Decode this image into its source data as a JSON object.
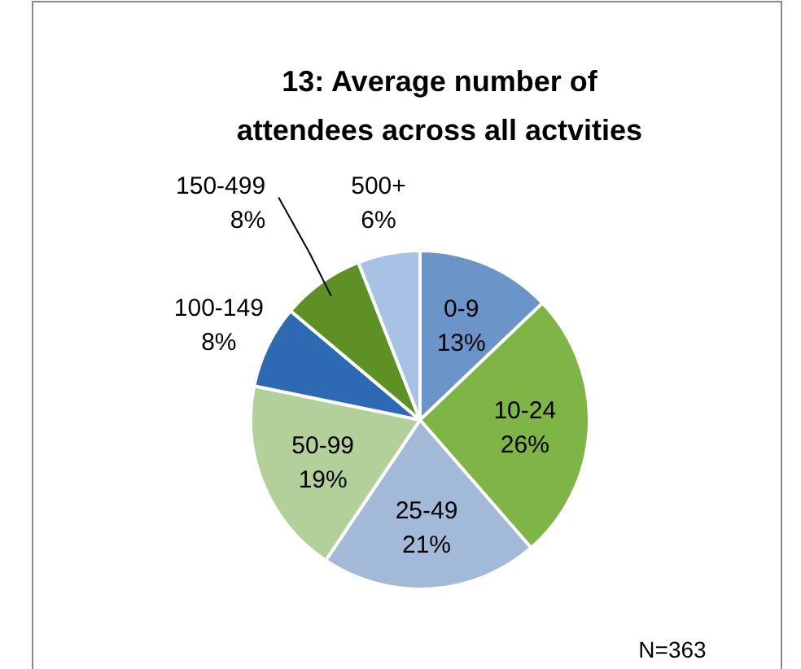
{
  "chart_data": {
    "type": "pie",
    "title": "13: Average number of attendees across all actvities",
    "categories": [
      "0-9",
      "10-24",
      "25-49",
      "50-99",
      "100-149",
      "150-499",
      "500+"
    ],
    "values": [
      13,
      26,
      21,
      19,
      8,
      8,
      6
    ],
    "colors": [
      "#6b94c9",
      "#7fb446",
      "#a3b9d8",
      "#b3cf9a",
      "#2e6ab4",
      "#5f9025",
      "#a8c2e6"
    ],
    "value_labels": [
      "13%",
      "26%",
      "21%",
      "19%",
      "8%",
      "8%",
      "6%"
    ],
    "annotations": [
      "N=363"
    ]
  }
}
